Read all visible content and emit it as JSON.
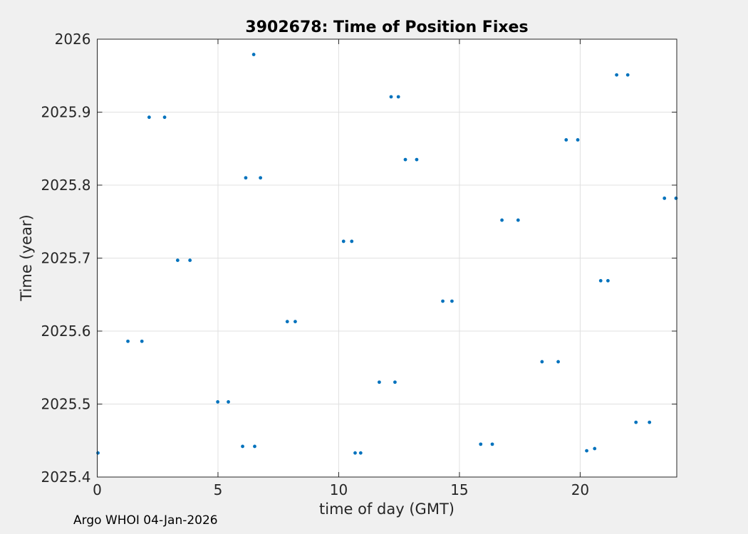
{
  "chart_data": {
    "type": "scatter",
    "title": "3902678: Time of Position Fixes",
    "xlabel": "time of day (GMT)",
    "ylabel": "Time (year)",
    "footer": "Argo WHOI 04-Jan-2026",
    "xlim": [
      0,
      24
    ],
    "ylim": [
      2025.4,
      2026
    ],
    "xticks": {
      "values": [
        0,
        5,
        10,
        15,
        20
      ],
      "labels": [
        "0",
        "5",
        "10",
        "15",
        "20"
      ]
    },
    "yticks": {
      "values": [
        2025.4,
        2025.5,
        2025.6,
        2025.7,
        2025.8,
        2025.9,
        2026
      ],
      "labels": [
        "2025.4",
        "2025.5",
        "2025.6",
        "2025.7",
        "2025.8",
        "2025.9",
        "2026"
      ]
    },
    "grid": true,
    "marker_color": "#0072BD",
    "axis_color": "#262626",
    "grid_color": "#e0e0e0",
    "plot_bg": "#ffffff",
    "figure_bg": "#f0f0f0",
    "points": [
      [
        0.03,
        2025.433
      ],
      [
        1.27,
        2025.586
      ],
      [
        1.85,
        2025.586
      ],
      [
        2.15,
        2025.893
      ],
      [
        2.79,
        2025.893
      ],
      [
        3.33,
        2025.697
      ],
      [
        3.84,
        2025.697
      ],
      [
        4.99,
        2025.503
      ],
      [
        5.43,
        2025.503
      ],
      [
        6.02,
        2025.442
      ],
      [
        6.52,
        2025.442
      ],
      [
        6.15,
        2025.81
      ],
      [
        6.76,
        2025.81
      ],
      [
        6.48,
        2025.979
      ],
      [
        7.87,
        2025.613
      ],
      [
        8.2,
        2025.613
      ],
      [
        10.2,
        2025.723
      ],
      [
        10.54,
        2025.723
      ],
      [
        10.68,
        2025.433
      ],
      [
        10.91,
        2025.433
      ],
      [
        11.68,
        2025.53
      ],
      [
        12.33,
        2025.53
      ],
      [
        12.17,
        2025.921
      ],
      [
        12.47,
        2025.921
      ],
      [
        12.76,
        2025.835
      ],
      [
        13.23,
        2025.835
      ],
      [
        14.31,
        2025.641
      ],
      [
        14.69,
        2025.641
      ],
      [
        15.88,
        2025.445
      ],
      [
        16.36,
        2025.445
      ],
      [
        16.76,
        2025.752
      ],
      [
        17.43,
        2025.752
      ],
      [
        18.42,
        2025.558
      ],
      [
        19.09,
        2025.558
      ],
      [
        19.42,
        2025.862
      ],
      [
        19.9,
        2025.862
      ],
      [
        20.27,
        2025.436
      ],
      [
        20.6,
        2025.439
      ],
      [
        20.85,
        2025.669
      ],
      [
        21.15,
        2025.669
      ],
      [
        21.51,
        2025.951
      ],
      [
        21.97,
        2025.951
      ],
      [
        22.31,
        2025.475
      ],
      [
        22.87,
        2025.475
      ],
      [
        23.49,
        2025.782
      ],
      [
        23.97,
        2025.782
      ]
    ]
  }
}
